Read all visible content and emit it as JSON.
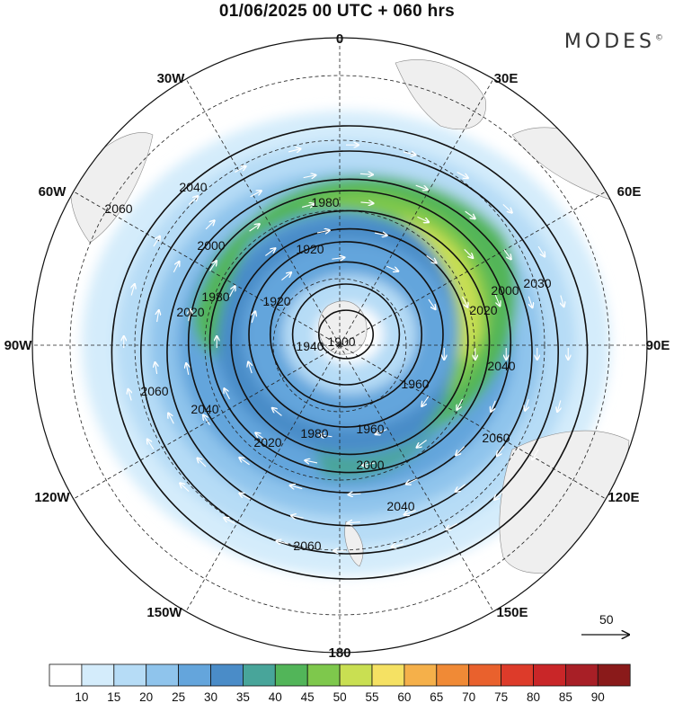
{
  "title": "01/06/2025  00 UTC  + 060 hrs",
  "brand": "MODES",
  "brand_mark": "©",
  "map": {
    "projection": "south polar stereographic",
    "longitude_labels": [
      "0",
      "30E",
      "60E",
      "90E",
      "120E",
      "150E",
      "180",
      "150W",
      "120W",
      "90W",
      "60W",
      "30W"
    ],
    "shaded_variable_colors": [
      "#ffffff",
      "#d4ecfb",
      "#b6dcf6",
      "#8fc4ec",
      "#64a5dc",
      "#4a8cc8",
      "#48a59a",
      "#52b559",
      "#7ec84c",
      "#c9df52",
      "#f5e163",
      "#f5b04a",
      "#f08a36",
      "#e9612d",
      "#dd3b2a",
      "#c92628",
      "#a81f26",
      "#8a1a1a"
    ],
    "contour_labels": [
      "1900",
      "1920",
      "1920",
      "1940",
      "1960",
      "1960",
      "1980",
      "1980",
      "1980",
      "2000",
      "2000",
      "2000",
      "2020",
      "2020",
      "2020",
      "2030",
      "2040",
      "2040",
      "2040",
      "2040",
      "2060",
      "2060",
      "2060",
      "2060"
    ],
    "land_color": "#efefef"
  },
  "wind_legend": {
    "value": "50"
  },
  "colorbar": {
    "colors": [
      "#ffffff",
      "#d4ecfb",
      "#b6dcf6",
      "#8fc4ec",
      "#64a5dc",
      "#4a8cc8",
      "#48a59a",
      "#52b559",
      "#7ec84c",
      "#c9df52",
      "#f5e163",
      "#f5b04a",
      "#f08a36",
      "#e9612d",
      "#dd3b2a",
      "#c92628",
      "#a81f26",
      "#8a1a1a"
    ],
    "labels": [
      "10",
      "15",
      "20",
      "25",
      "30",
      "35",
      "40",
      "45",
      "50",
      "55",
      "60",
      "65",
      "70",
      "75",
      "80",
      "85",
      "90"
    ]
  }
}
